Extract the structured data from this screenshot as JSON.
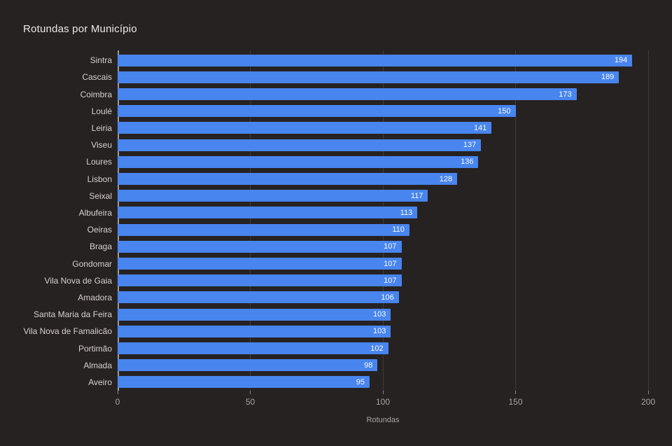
{
  "chart": {
    "colors": {
      "background": "#262222",
      "bar": "#4885ee",
      "title_text": "#ebe8e5",
      "category_text": "#d6d1ce",
      "value_text": "#fafafa",
      "axis_text": "#a9a4a1",
      "gridline": "#3e3a3a",
      "axis_line": "#9e9a9a"
    }
  },
  "chart_data": {
    "type": "bar",
    "orientation": "horizontal",
    "title": "Rotundas por Município",
    "categories": [
      "Sintra",
      "Cascais",
      "Coimbra",
      "Loulé",
      "Leiria",
      "Viseu",
      "Loures",
      "Lisbon",
      "Seixal",
      "Albufeira",
      "Oeiras",
      "Braga",
      "Gondomar",
      "Vila Nova de Gaia",
      "Amadora",
      "Santa Maria da Feira",
      "Vila Nova de Famalicão",
      "Portimão",
      "Almada",
      "Aveiro"
    ],
    "values": [
      194,
      189,
      173,
      150,
      141,
      137,
      136,
      128,
      117,
      113,
      110,
      107,
      107,
      107,
      106,
      103,
      103,
      102,
      98,
      95
    ],
    "xlabel": "Rotundas",
    "ylabel": "",
    "xlim": [
      0,
      200
    ],
    "x_ticks": [
      0,
      50,
      100,
      150,
      200
    ],
    "grid": true,
    "legend": false
  }
}
